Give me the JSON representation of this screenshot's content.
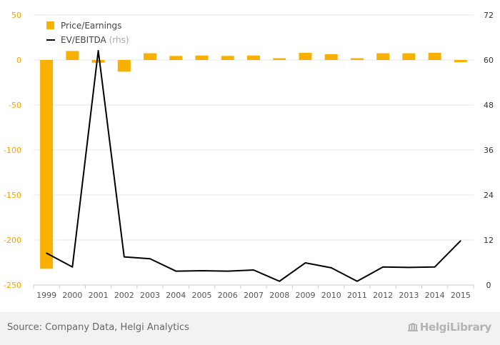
{
  "chart_data": {
    "type": "bar+line",
    "categories": [
      "1999",
      "2000",
      "2001",
      "2002",
      "2003",
      "2004",
      "2005",
      "2006",
      "2007",
      "2008",
      "2009",
      "2010",
      "2011",
      "2012",
      "2013",
      "2014",
      "2015"
    ],
    "series": [
      {
        "name": "Price/Earnings",
        "type": "bar",
        "axis": "left",
        "color": "#f9b000",
        "values": [
          -232,
          10,
          -3,
          -13,
          7.5,
          4.5,
          5,
          4.5,
          5,
          2,
          8,
          6.5,
          2,
          7.5,
          7.5,
          8,
          -2.5
        ]
      },
      {
        "name": "EV/EBITDA",
        "legend_suffix": "(rhs)",
        "type": "line",
        "axis": "right",
        "color": "#000000",
        "values": [
          8.5,
          4.8,
          62.5,
          7.5,
          7.0,
          3.7,
          3.8,
          3.7,
          4.0,
          1.0,
          5.9,
          4.6,
          1.0,
          4.8,
          4.7,
          4.8,
          11.8
        ]
      }
    ],
    "y_left": {
      "min": -250,
      "max": 50,
      "ticks": [
        "50",
        "0",
        "-50",
        "-100",
        "-150",
        "-200",
        "-250"
      ]
    },
    "y_right": {
      "min": 0,
      "max": 72,
      "ticks": [
        "72",
        "60",
        "48",
        "36",
        "24",
        "12",
        "0"
      ]
    },
    "grid": true,
    "legend_position": "top-left"
  },
  "footer": {
    "source": "Source: Company Data, Helgi Analytics",
    "brand": "HelgiLibrary"
  }
}
